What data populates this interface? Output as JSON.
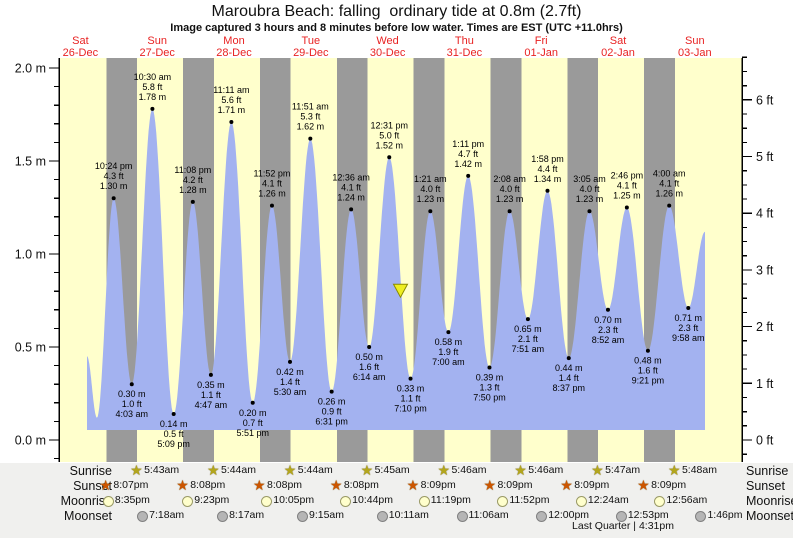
{
  "header": {
    "title": "Maroubra Beach: falling  ordinary tide at 0.8m (2.7ft)",
    "subtitle": "Image captured 3 hours and 8 minutes before low water. Times are EST (UTC +11.0hrs)"
  },
  "days": [
    {
      "name": "Sat",
      "date": "26-Dec"
    },
    {
      "name": "Sun",
      "date": "27-Dec"
    },
    {
      "name": "Mon",
      "date": "28-Dec"
    },
    {
      "name": "Tue",
      "date": "29-Dec"
    },
    {
      "name": "Wed",
      "date": "30-Dec"
    },
    {
      "name": "Thu",
      "date": "31-Dec"
    },
    {
      "name": "Fri",
      "date": "01-Jan"
    },
    {
      "name": "Sat",
      "date": "02-Jan"
    },
    {
      "name": "Sun",
      "date": "03-Jan"
    }
  ],
  "chart_data": {
    "type": "area",
    "title": "Maroubra Beach: falling  ordinary tide at 0.8m (2.7ft)",
    "x_range_days": 9,
    "ylim_m": [
      -0.12,
      2.05
    ],
    "grid": false,
    "y_axis_left": {
      "unit": "m",
      "major_ticks": [
        {
          "label": "2.0 m",
          "value": 2.0
        },
        {
          "label": "1.5 m",
          "value": 1.5
        },
        {
          "label": "1.0 m",
          "value": 1.0
        },
        {
          "label": "0.5 m",
          "value": 0.5
        },
        {
          "label": "0.0 m",
          "value": 0.0
        }
      ],
      "minor_step": 0.1
    },
    "y_axis_right": {
      "unit": "ft",
      "major_ticks": [
        {
          "label": "6 ft",
          "value": 6
        },
        {
          "label": "5 ft",
          "value": 5
        },
        {
          "label": "4 ft",
          "value": 4
        },
        {
          "label": "3 ft",
          "value": 3
        },
        {
          "label": "2 ft",
          "value": 2
        },
        {
          "label": "1 ft",
          "value": 1
        },
        {
          "label": "0 ft",
          "value": 0
        }
      ],
      "minor_step": 0.25
    },
    "tide_curve": {
      "start": {
        "t": 0.586,
        "h": 0.45
      },
      "end": {
        "t": 8.633,
        "h": 1.12
      },
      "extrema": [
        {
          "t": 0.715,
          "h": 0.12
        },
        {
          "t": 0.9333,
          "h": 1.3,
          "type": "high",
          "time": "10:24 pm",
          "ft": "4.3 ft",
          "m": "1.30 m"
        },
        {
          "t": 1.1688,
          "h": 0.3,
          "type": "low",
          "time": "4:03 am",
          "ft": "1.0 ft",
          "m": "0.30 m"
        },
        {
          "t": 1.4375,
          "h": 1.78,
          "type": "high",
          "time": "10:30 am",
          "ft": "5.8 ft",
          "m": "1.78 m"
        },
        {
          "t": 1.7146,
          "h": 0.14,
          "type": "low",
          "time": "5:09 pm",
          "ft": "0.5 ft",
          "m": "0.14 m"
        },
        {
          "t": 1.9639,
          "h": 1.28,
          "type": "high",
          "time": "11:08 pm",
          "ft": "4.2 ft",
          "m": "1.28 m"
        },
        {
          "t": 2.1993,
          "h": 0.35,
          "type": "low",
          "time": "4:47 am",
          "ft": "1.1 ft",
          "m": "0.35 m"
        },
        {
          "t": 2.466,
          "h": 1.71,
          "type": "high",
          "time": "11:11 am",
          "ft": "5.6 ft",
          "m": "1.71 m"
        },
        {
          "t": 2.7438,
          "h": 0.2,
          "type": "low",
          "time": "5:51 pm",
          "ft": "0.7 ft",
          "m": "0.20 m"
        },
        {
          "t": 2.9944,
          "h": 1.26,
          "type": "high",
          "time": "11:52 pm",
          "ft": "4.1 ft",
          "m": "1.26 m"
        },
        {
          "t": 3.2292,
          "h": 0.42,
          "type": "low",
          "time": "5:30 am",
          "ft": "1.4 ft",
          "m": "0.42 m"
        },
        {
          "t": 3.4938,
          "h": 1.62,
          "type": "high",
          "time": "11:51 am",
          "ft": "5.3 ft",
          "m": "1.62 m"
        },
        {
          "t": 3.7715,
          "h": 0.26,
          "type": "low",
          "time": "6:31 pm",
          "ft": "0.9 ft",
          "m": "0.26 m"
        },
        {
          "t": 4.025,
          "h": 1.24,
          "type": "high",
          "time": "12:36 am",
          "ft": "4.1 ft",
          "m": "1.24 m"
        },
        {
          "t": 4.2597,
          "h": 0.5,
          "type": "low",
          "time": "6:14 am",
          "ft": "1.6 ft",
          "m": "0.50 m"
        },
        {
          "t": 4.5215,
          "h": 1.52,
          "type": "high",
          "time": "12:31 pm",
          "ft": "5.0 ft",
          "m": "1.52 m"
        },
        {
          "t": 4.7986,
          "h": 0.33,
          "type": "low",
          "time": "7:10 pm",
          "ft": "1.1 ft",
          "m": "0.33 m"
        },
        {
          "t": 5.0563,
          "h": 1.23,
          "type": "high",
          "time": "1:21 am",
          "ft": "4.0 ft",
          "m": "1.23 m"
        },
        {
          "t": 5.2917,
          "h": 0.58,
          "type": "low",
          "time": "7:00 am",
          "ft": "1.9 ft",
          "m": "0.58 m"
        },
        {
          "t": 5.5493,
          "h": 1.42,
          "type": "high",
          "time": "1:11 pm",
          "ft": "4.7 ft",
          "m": "1.42 m"
        },
        {
          "t": 5.8264,
          "h": 0.39,
          "type": "low",
          "time": "7:50 pm",
          "ft": "1.3 ft",
          "m": "0.39 m"
        },
        {
          "t": 6.0889,
          "h": 1.23,
          "type": "high",
          "time": "2:08 am",
          "ft": "4.0 ft",
          "m": "1.23 m"
        },
        {
          "t": 6.3271,
          "h": 0.65,
          "type": "low",
          "time": "7:51 am",
          "ft": "2.1 ft",
          "m": "0.65 m"
        },
        {
          "t": 6.5819,
          "h": 1.34,
          "type": "high",
          "time": "1:58 pm",
          "ft": "4.4 ft",
          "m": "1.34 m"
        },
        {
          "t": 6.859,
          "h": 0.44,
          "type": "low",
          "time": "8:37 pm",
          "ft": "1.4 ft",
          "m": "0.44 m"
        },
        {
          "t": 7.1285,
          "h": 1.23,
          "type": "high",
          "time": "3:05 am",
          "ft": "4.0 ft",
          "m": "1.23 m"
        },
        {
          "t": 7.3694,
          "h": 0.7,
          "type": "low",
          "time": "8:52 am",
          "ft": "2.3 ft",
          "m": "0.70 m"
        },
        {
          "t": 7.6153,
          "h": 1.25,
          "type": "high",
          "time": "2:46 pm",
          "ft": "4.1 ft",
          "m": "1.25 m"
        },
        {
          "t": 7.8896,
          "h": 0.48,
          "type": "low",
          "time": "9:21 pm",
          "ft": "1.6 ft",
          "m": "0.48 m"
        },
        {
          "t": 8.1667,
          "h": 1.26,
          "type": "high",
          "time": "4:00 am",
          "ft": "4.1 ft",
          "m": "1.26 m"
        },
        {
          "t": 8.4153,
          "h": 0.71,
          "type": "low",
          "time": "9:58 am",
          "ft": "2.3 ft",
          "m": "0.71 m"
        }
      ]
    },
    "current_marker": {
      "t": 4.668,
      "h": 0.8
    }
  },
  "astro": {
    "rows": [
      {
        "label": "Sunrise",
        "icon": "sunrise-icon",
        "events": [
          {
            "time": "5:43am",
            "t": 1.2382
          },
          {
            "time": "5:44am",
            "t": 2.2389
          },
          {
            "time": "5:44am",
            "t": 3.2389
          },
          {
            "time": "5:45am",
            "t": 4.2396
          },
          {
            "time": "5:46am",
            "t": 5.2403
          },
          {
            "time": "5:46am",
            "t": 6.2403
          },
          {
            "time": "5:47am",
            "t": 7.241
          },
          {
            "time": "5:48am",
            "t": 8.2417
          }
        ]
      },
      {
        "label": "Sunset",
        "icon": "sunset-icon",
        "events": [
          {
            "time": "8:07pm",
            "t": 0.8382
          },
          {
            "time": "8:08pm",
            "t": 1.8389
          },
          {
            "time": "8:08pm",
            "t": 2.8389
          },
          {
            "time": "8:08pm",
            "t": 3.8389
          },
          {
            "time": "8:09pm",
            "t": 4.8396
          },
          {
            "time": "8:09pm",
            "t": 5.8396
          },
          {
            "time": "8:09pm",
            "t": 6.8396
          },
          {
            "time": "8:09pm",
            "t": 7.8396
          }
        ]
      },
      {
        "label": "Moonrise",
        "icon": "moonrise-icon",
        "events": [
          {
            "time": "8:35pm",
            "t": 0.8576
          },
          {
            "time": "9:23pm",
            "t": 1.891
          },
          {
            "time": "10:05pm",
            "t": 2.9201
          },
          {
            "time": "10:44pm",
            "t": 3.9472
          },
          {
            "time": "11:19pm",
            "t": 4.9715
          },
          {
            "time": "11:52pm",
            "t": 5.9944
          },
          {
            "time": "12:24am",
            "t": 7.0167
          },
          {
            "time": "12:56am",
            "t": 8.0389
          }
        ]
      },
      {
        "label": "Moonset",
        "icon": "moonset-icon",
        "events": [
          {
            "time": "7:18am",
            "t": 1.3042
          },
          {
            "time": "8:17am",
            "t": 2.3451
          },
          {
            "time": "9:15am",
            "t": 3.3854
          },
          {
            "time": "10:11am",
            "t": 4.4243
          },
          {
            "time": "11:06am",
            "t": 5.4625
          },
          {
            "time": "12:00pm",
            "t": 6.5
          },
          {
            "time": "12:53pm",
            "t": 7.5368
          },
          {
            "time": "1:46pm",
            "t": 8.5736
          }
        ]
      }
    ],
    "moon_phase": "Last Quarter | 4:31pm"
  },
  "colors": {
    "day_bg": "#ffffcc",
    "night_bg": "#9a9a9a",
    "tide_fill": "#a3b2f0",
    "day_label": "#e82222",
    "marker_fill": "#eeee22",
    "marker_stroke": "#8a8a00",
    "sunrise_star": "#b3a61c",
    "sunset_star": "#cc5500",
    "moonrise_fill": "#ffffcc",
    "moonrise_border": "#9a9a66",
    "moonset_fill": "#b5b5b5",
    "moonset_border": "#808080"
  }
}
